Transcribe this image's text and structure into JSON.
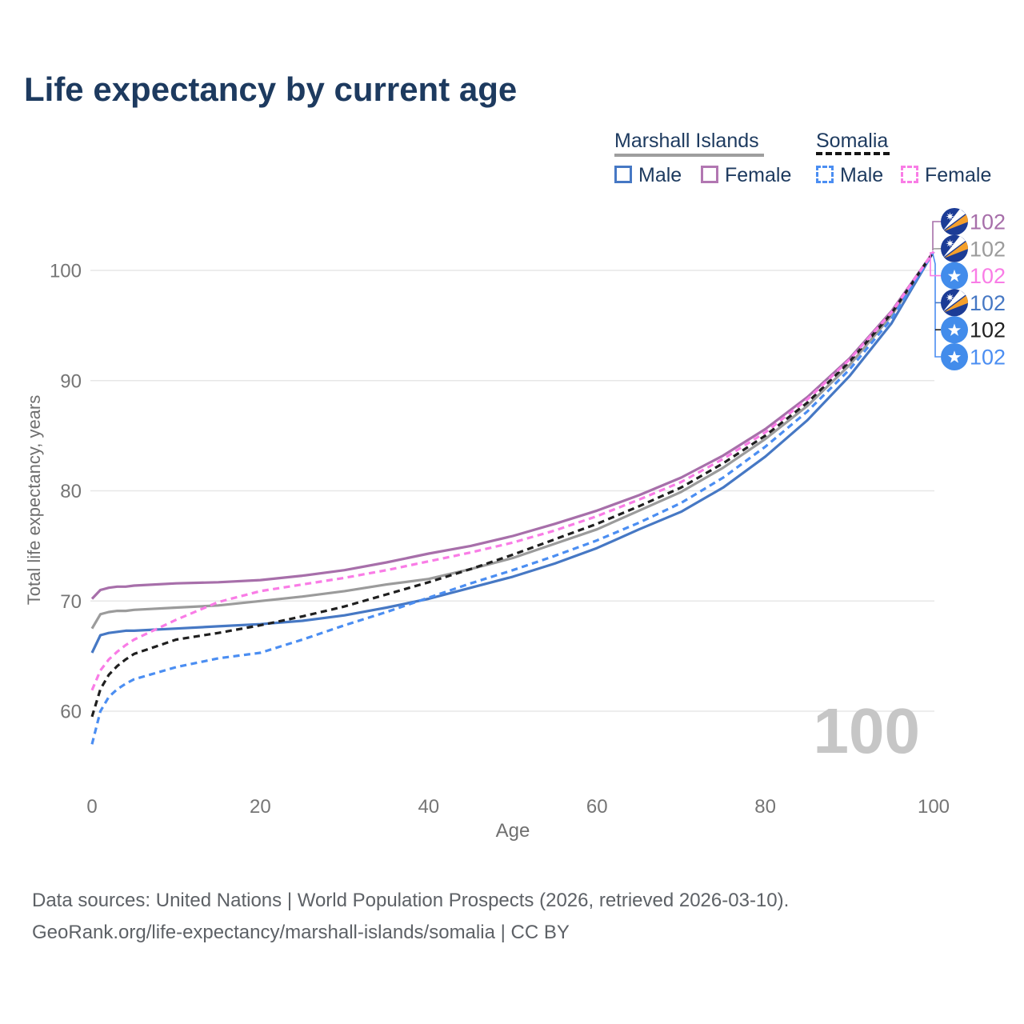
{
  "title": "Life expectancy by current age",
  "legend": {
    "group1": {
      "label": "Marshall Islands",
      "line_color": "#9e9e9e",
      "items": [
        {
          "label": "Male",
          "color": "#4678c4",
          "style": "solid"
        },
        {
          "label": "Female",
          "color": "#b277b2",
          "style": "solid"
        }
      ]
    },
    "group2": {
      "label": "Somalia",
      "line_color": "#141414",
      "items": [
        {
          "label": "Male",
          "color": "#4b8ef2",
          "style": "dashed"
        },
        {
          "label": "Female",
          "color": "#f97ce6",
          "style": "dashed"
        }
      ]
    }
  },
  "chart_data": {
    "type": "line",
    "title": "Life expectancy by current age",
    "xlabel": "Age",
    "ylabel": "Total life expectancy, years",
    "xlim": [
      0,
      100
    ],
    "ylim": [
      56,
      104
    ],
    "xticks": [
      0,
      20,
      40,
      60,
      80,
      100
    ],
    "yticks": [
      60,
      70,
      80,
      90,
      100
    ],
    "grid": "horizontal",
    "legend_position": "top-right",
    "watermark": "100",
    "x": [
      0,
      1,
      2,
      3,
      4,
      5,
      10,
      15,
      20,
      25,
      30,
      35,
      40,
      45,
      50,
      55,
      60,
      65,
      70,
      75,
      80,
      85,
      90,
      95,
      100
    ],
    "series": [
      {
        "name": "Marshall Islands — Female",
        "country": "Marshall Islands",
        "sex": "Female",
        "color": "#a76faa",
        "dash": false,
        "end_label": "102",
        "values": [
          70.2,
          71.0,
          71.2,
          71.3,
          71.3,
          71.4,
          71.6,
          71.7,
          71.9,
          72.3,
          72.8,
          73.5,
          74.3,
          75.0,
          75.9,
          77.0,
          78.2,
          79.6,
          81.2,
          83.2,
          85.6,
          88.5,
          92.0,
          96.3,
          101.7
        ]
      },
      {
        "name": "Marshall Islands — Both sexes",
        "country": "Marshall Islands",
        "sex": "Both",
        "color": "#9b9b9b",
        "dash": false,
        "end_label": "102",
        "values": [
          67.5,
          68.8,
          69.0,
          69.1,
          69.1,
          69.2,
          69.4,
          69.6,
          70.0,
          70.4,
          70.9,
          71.5,
          72.0,
          72.9,
          73.9,
          75.2,
          76.5,
          78.2,
          79.9,
          82.1,
          84.7,
          87.7,
          91.4,
          95.9,
          101.7
        ]
      },
      {
        "name": "Marshall Islands — Male",
        "country": "Marshall Islands",
        "sex": "Male",
        "color": "#4678c4",
        "dash": false,
        "end_label": "102",
        "values": [
          65.3,
          66.9,
          67.1,
          67.2,
          67.3,
          67.3,
          67.5,
          67.7,
          67.9,
          68.2,
          68.7,
          69.4,
          70.2,
          71.2,
          72.2,
          73.4,
          74.8,
          76.5,
          78.1,
          80.3,
          83.1,
          86.4,
          90.4,
          95.2,
          101.7
        ]
      },
      {
        "name": "Somalia — Female",
        "country": "Somalia",
        "sex": "Female",
        "color": "#f97ce6",
        "dash": true,
        "end_label": "102",
        "values": [
          61.9,
          63.7,
          64.7,
          65.4,
          66.0,
          66.5,
          68.3,
          69.9,
          70.9,
          71.5,
          72.1,
          72.8,
          73.6,
          74.4,
          75.3,
          76.4,
          77.7,
          79.2,
          80.8,
          82.9,
          85.3,
          88.3,
          91.9,
          96.2,
          101.7
        ]
      },
      {
        "name": "Somalia — Both sexes",
        "country": "Somalia",
        "sex": "Both",
        "color": "#1f1f1f",
        "dash": true,
        "end_label": "102",
        "values": [
          59.5,
          62.0,
          63.3,
          64.1,
          64.7,
          65.2,
          66.5,
          67.1,
          67.8,
          68.6,
          69.5,
          70.6,
          71.7,
          72.9,
          74.2,
          75.6,
          77.0,
          78.6,
          80.3,
          82.5,
          85.0,
          88.0,
          91.7,
          96.1,
          101.7
        ]
      },
      {
        "name": "Somalia — Male",
        "country": "Somalia",
        "sex": "Male",
        "color": "#4b8ef2",
        "dash": true,
        "end_label": "102",
        "values": [
          57.0,
          60.0,
          61.3,
          62.0,
          62.5,
          62.9,
          64.0,
          64.8,
          65.3,
          66.5,
          67.8,
          69.0,
          70.3,
          71.6,
          72.8,
          74.1,
          75.5,
          77.1,
          78.9,
          81.2,
          84.0,
          87.2,
          91.0,
          95.6,
          101.7
        ]
      }
    ]
  },
  "annotations": [
    {
      "flag": "marshall-islands",
      "value": "102",
      "color": "#a76faa"
    },
    {
      "flag": "marshall-islands",
      "value": "102",
      "color": "#9b9b9b"
    },
    {
      "flag": "somalia",
      "value": "102",
      "color": "#f97ce6"
    },
    {
      "flag": "marshall-islands",
      "value": "102",
      "color": "#4678c4"
    },
    {
      "flag": "somalia",
      "value": "102",
      "color": "#1f1f1f"
    },
    {
      "flag": "somalia",
      "value": "102",
      "color": "#4b8ef2"
    }
  ],
  "flag_colors": {
    "marshall_islands_blue": "#1c3c96",
    "marshall_islands_orange": "#f5a02b",
    "somalia_blue": "#428ceb"
  },
  "footer": {
    "line1": "Data sources: United Nations | World Population Prospects (2026, retrieved 2026-03-10).",
    "line2": "GeoRank.org/life-expectancy/marshall-islands/somalia | CC BY"
  }
}
